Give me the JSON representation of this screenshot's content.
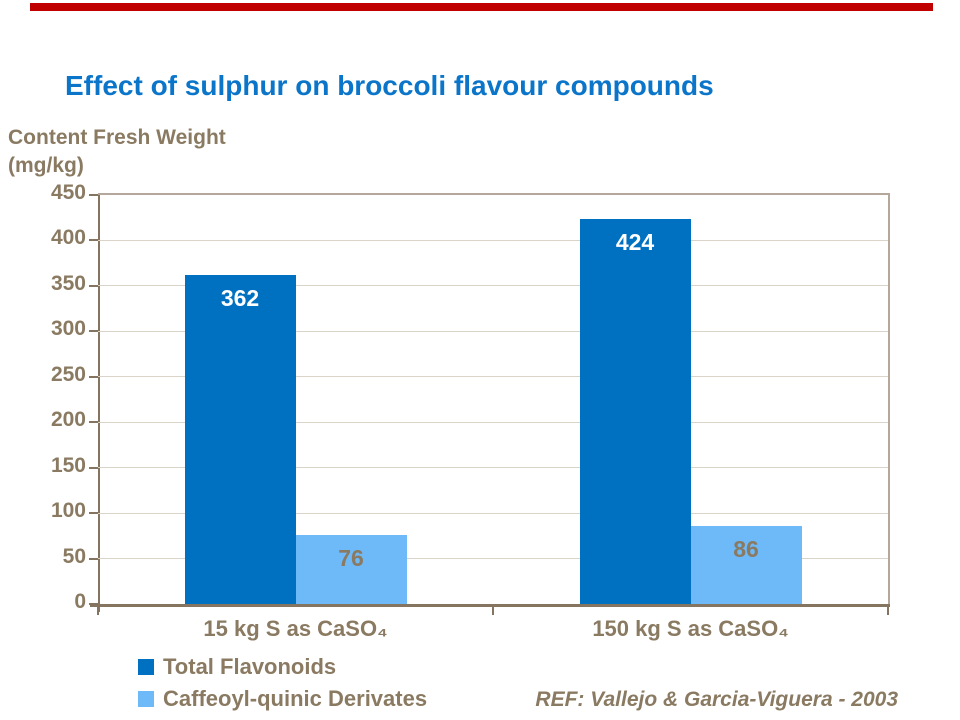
{
  "banner": {
    "color": "#c00000"
  },
  "title": "Effect of sulphur on broccoli flavour compounds",
  "title_color": "#0b75c9",
  "text_color": "#8a7a62",
  "axis_color": "#857560",
  "y_axis_label_line1": "Content Fresh Weight",
  "y_axis_label_line2": "(mg/kg)",
  "reference": "REF: Vallejo & Garcia-Viguera - 2003",
  "chart_data": {
    "type": "bar",
    "title": "Effect of sulphur on broccoli flavour compounds",
    "ylabel": "Content Fresh Weight (mg/kg)",
    "xlabel": "",
    "categories": [
      "15 kg S as CaSO₄",
      "150 kg S as CaSO₄"
    ],
    "series": [
      {
        "name": "Total Flavonoids",
        "values": [
          362,
          424
        ],
        "color": "#0070c0",
        "label_color": "#ffffff"
      },
      {
        "name": "Caffeoyl-quinic Derivates",
        "values": [
          76,
          86
        ],
        "color": "#6eb9f8",
        "label_color": "#8a7a62"
      }
    ],
    "ylim": [
      0,
      450
    ],
    "ytick_interval": 50,
    "yticks": [
      450,
      400,
      350,
      300,
      250,
      200,
      150,
      100,
      50,
      0
    ],
    "grid": true,
    "legend_position": "bottom-left"
  }
}
